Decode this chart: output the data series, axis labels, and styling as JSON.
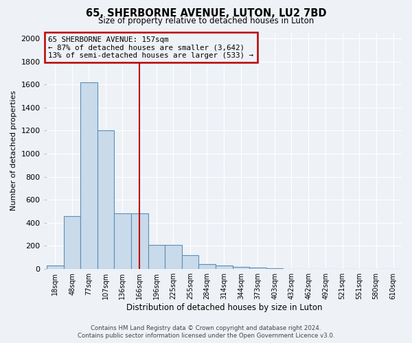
{
  "title1": "65, SHERBORNE AVENUE, LUTON, LU2 7BD",
  "title2": "Size of property relative to detached houses in Luton",
  "xlabel": "Distribution of detached houses by size in Luton",
  "ylabel": "Number of detached properties",
  "footer1": "Contains HM Land Registry data © Crown copyright and database right 2024.",
  "footer2": "Contains public sector information licensed under the Open Government Licence v3.0.",
  "annotation_line1": "65 SHERBORNE AVENUE: 157sqm",
  "annotation_line2": "← 87% of detached houses are smaller (3,642)",
  "annotation_line3": "13% of semi-detached houses are larger (533) →",
  "bin_centers": [
    18,
    48,
    77,
    107,
    136,
    166,
    196,
    225,
    255,
    284,
    314,
    344,
    373,
    403,
    432,
    462,
    492,
    521,
    551,
    580,
    610
  ],
  "bar_heights": [
    30,
    460,
    1620,
    1200,
    480,
    480,
    210,
    210,
    120,
    40,
    30,
    20,
    10,
    5,
    2,
    1,
    1,
    0,
    0,
    0,
    0
  ],
  "bar_color": "#c9daea",
  "bar_edge_color": "#5b8fb5",
  "vline_color": "#bb0000",
  "vline_x_index": 5,
  "ylim": [
    0,
    2050
  ],
  "yticks": [
    0,
    200,
    400,
    600,
    800,
    1000,
    1200,
    1400,
    1600,
    1800,
    2000
  ],
  "xtick_labels": [
    "18sqm",
    "48sqm",
    "77sqm",
    "107sqm",
    "136sqm",
    "166sqm",
    "196sqm",
    "225sqm",
    "255sqm",
    "284sqm",
    "314sqm",
    "344sqm",
    "373sqm",
    "403sqm",
    "432sqm",
    "462sqm",
    "492sqm",
    "521sqm",
    "551sqm",
    "580sqm",
    "610sqm"
  ],
  "background_color": "#eef2f7",
  "grid_color": "#ffffff",
  "plot_bg_color": "#eef2f7"
}
